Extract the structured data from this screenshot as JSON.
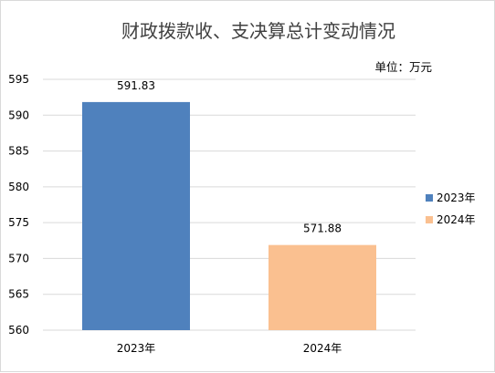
{
  "chart_data": {
    "type": "bar",
    "title": "财政拨款收、支决算总计变动情况",
    "unit_label": "单位：万元",
    "categories": [
      "2023年",
      "2024年"
    ],
    "series": [
      {
        "name": "2023年",
        "values": [
          591.83,
          null
        ],
        "color": "#4f81bd"
      },
      {
        "name": "2024年",
        "values": [
          null,
          571.88
        ],
        "color": "#fac090"
      }
    ],
    "data_labels": [
      "591.83",
      "571.88"
    ],
    "ylim": [
      560,
      595
    ],
    "yticks": [
      560,
      565,
      570,
      575,
      580,
      585,
      590,
      595
    ],
    "grid": true,
    "legend_position": "right",
    "xlabel": "",
    "ylabel": ""
  }
}
